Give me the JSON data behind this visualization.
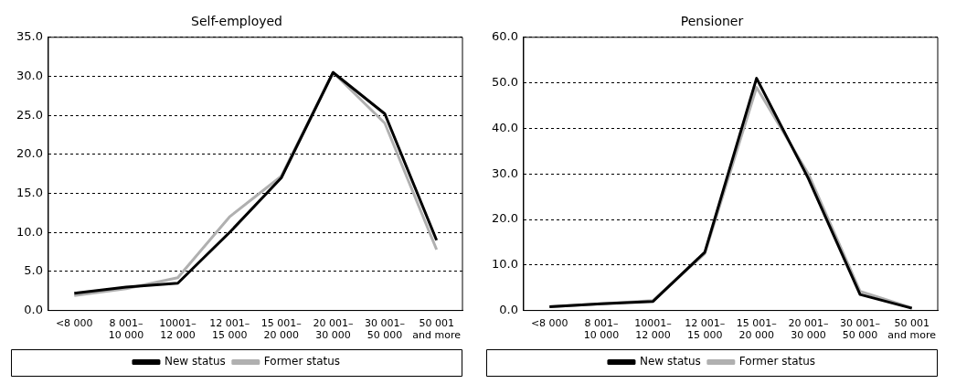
{
  "chart_data": [
    {
      "type": "line",
      "title": "Self-employed",
      "categories": [
        "<8 000",
        "8 001–\n10 000",
        "10001–\n12 000",
        "12 001–\n15 000",
        "15 001–\n20 000",
        "20 001–\n30 000",
        "30 001–\n50 000",
        "50 001\nand more"
      ],
      "series": [
        {
          "name": "New status",
          "color": "#000000",
          "values": [
            2.2,
            3.0,
            3.5,
            10.0,
            17.0,
            30.5,
            25.2,
            9.0
          ]
        },
        {
          "name": "Former status",
          "color": "#b0b0b0",
          "values": [
            1.9,
            2.8,
            4.2,
            12.0,
            17.2,
            30.5,
            24.0,
            7.8
          ]
        }
      ],
      "ylim": [
        0,
        35
      ],
      "yticks": [
        {
          "value": 0,
          "label": "0.0"
        },
        {
          "value": 5,
          "label": "5.0"
        },
        {
          "value": 10,
          "label": "10.0"
        },
        {
          "value": 15,
          "label": "15.0"
        },
        {
          "value": 20,
          "label": "20.0"
        },
        {
          "value": 25,
          "label": "25.0"
        },
        {
          "value": 30,
          "label": "30.0"
        },
        {
          "value": 35,
          "label": "35.0"
        }
      ],
      "grid": "y",
      "legend": "bottom",
      "marker": "none",
      "line_style": "solid"
    },
    {
      "type": "line",
      "title": "Pensioner",
      "categories": [
        "<8 000",
        "8 001–\n10 000",
        "10001–\n12 000",
        "12 001–\n15 000",
        "15 001–\n20 000",
        "20 001–\n30 000",
        "30 001–\n50 000",
        "50 001\nand more"
      ],
      "series": [
        {
          "name": "New status",
          "color": "#000000",
          "values": [
            0.8,
            1.5,
            2.0,
            12.8,
            51.0,
            29.0,
            3.5,
            0.5
          ]
        },
        {
          "name": "Former status",
          "color": "#b0b0b0",
          "values": [
            0.8,
            1.5,
            2.2,
            12.5,
            49.0,
            30.0,
            4.2,
            0.6
          ]
        }
      ],
      "ylim": [
        0,
        60
      ],
      "yticks": [
        {
          "value": 0,
          "label": "0.0"
        },
        {
          "value": 10,
          "label": "10.0"
        },
        {
          "value": 20,
          "label": "20.0"
        },
        {
          "value": 30,
          "label": "30.0"
        },
        {
          "value": 40,
          "label": "40.0"
        },
        {
          "value": 50,
          "label": "50.0"
        },
        {
          "value": 60,
          "label": "60.0"
        }
      ],
      "grid": "y",
      "legend": "bottom",
      "marker": "none",
      "line_style": "solid"
    }
  ]
}
